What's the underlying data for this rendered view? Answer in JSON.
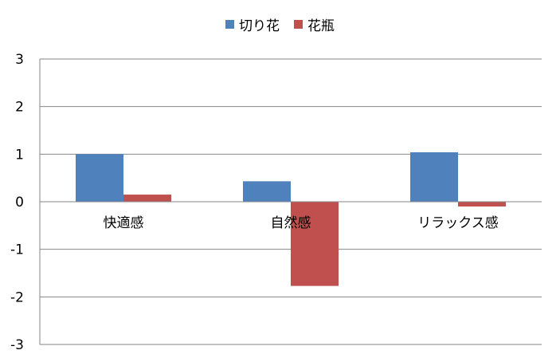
{
  "chart_data": {
    "type": "bar",
    "categories": [
      "快適感",
      "自然感",
      "リラックス感"
    ],
    "series": [
      {
        "name": "切り花",
        "values": [
          1.0,
          0.43,
          1.04
        ],
        "color": "#4F81BD"
      },
      {
        "name": "花瓶",
        "values": [
          0.15,
          -1.77,
          -0.1
        ],
        "color": "#C0504D"
      }
    ],
    "ylim": [
      -3,
      3
    ],
    "yticks": [
      3,
      2,
      1,
      0,
      -1,
      -2,
      -3
    ],
    "grid": true,
    "legend_position": "top-center",
    "title": "",
    "xlabel": "",
    "ylabel": ""
  }
}
